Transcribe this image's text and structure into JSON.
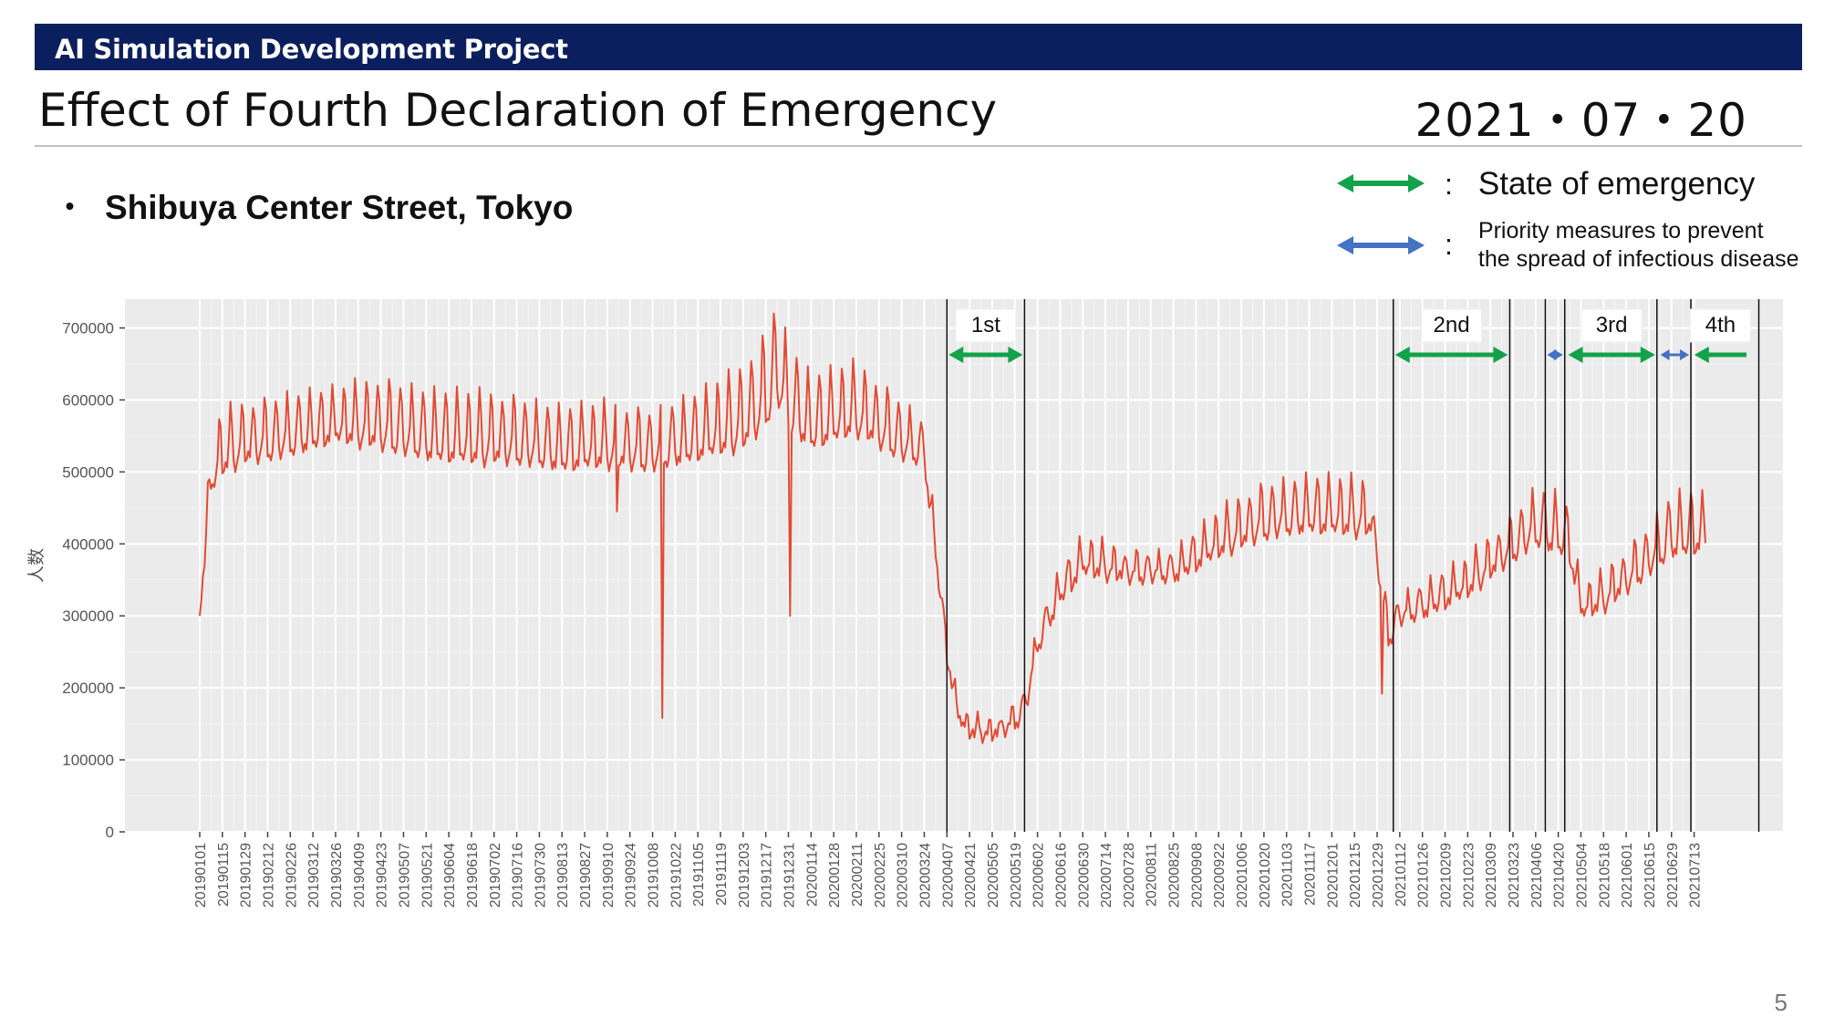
{
  "header": {
    "project": "AI Simulation Development Project"
  },
  "slide": {
    "title": "Effect of Fourth Declaration of Emergency",
    "date": "2021・07・20",
    "subtitle_bullet": "・",
    "subtitle": "Shibuya Center Street, Tokyo",
    "page_number": "5"
  },
  "legend": {
    "colon": ":",
    "state_of_emergency": "State of emergency",
    "priority_line1": "Priority measures to prevent",
    "priority_line2": "the spread of infectious disease",
    "state_color": "#12a24a",
    "priority_color": "#4472c4"
  },
  "colors": {
    "header_bg": "#0b1f5e",
    "plot_bg": "#ebebeb",
    "line": "#e34a33",
    "grid": "#ffffff"
  },
  "chart_data": {
    "type": "line",
    "title": "",
    "xlabel": "",
    "ylabel": "人数",
    "ylim": [
      0,
      740000
    ],
    "yticks": [
      0,
      100000,
      200000,
      300000,
      400000,
      500000,
      600000,
      700000
    ],
    "x_start": "20190101",
    "x_end": "20210720",
    "x_tick_labels": [
      "20190101",
      "20190115",
      "20190129",
      "20190212",
      "20190226",
      "20190312",
      "20190326",
      "20190409",
      "20190423",
      "20190507",
      "20190521",
      "20190604",
      "20190618",
      "20190702",
      "20190716",
      "20190730",
      "20190813",
      "20190827",
      "20190910",
      "20190924",
      "20191008",
      "20191022",
      "20191105",
      "20191119",
      "20191203",
      "20191217",
      "20191231",
      "20200114",
      "20200128",
      "20200211",
      "20200225",
      "20200310",
      "20200324",
      "20200407",
      "20200421",
      "20200505",
      "20200519",
      "20200602",
      "20200616",
      "20200630",
      "20200714",
      "20200728",
      "20200811",
      "20200825",
      "20200908",
      "20200922",
      "20201006",
      "20201020",
      "20201103",
      "20201117",
      "20201201",
      "20201215",
      "20201229",
      "20210112",
      "20210126",
      "20210209",
      "20210223",
      "20210309",
      "20210323",
      "20210406",
      "20210420",
      "20210504",
      "20210518",
      "20210601",
      "20210615",
      "20210629",
      "20210713"
    ],
    "series": [
      {
        "name": "",
        "weekly_anchors": {
          "dates": [
            "20190101",
            "20190108",
            "20190115",
            "20190129",
            "20190226",
            "20190326",
            "20190423",
            "20190521",
            "20190618",
            "20190716",
            "20190813",
            "20190910",
            "20191008",
            "20191105",
            "20191203",
            "20191217",
            "20191224",
            "20191231",
            "20200114",
            "20200211",
            "20200310",
            "20200324",
            "20200331",
            "20200407",
            "20200414",
            "20200421",
            "20200505",
            "20200519",
            "20200526",
            "20200602",
            "20200616",
            "20200630",
            "20200728",
            "20200825",
            "20200922",
            "20201020",
            "20201117",
            "20201215",
            "20201225",
            "20201229",
            "20210105",
            "20210112",
            "20210126",
            "20210223",
            "20210323",
            "20210406",
            "20210420",
            "20210427",
            "20210504",
            "20210518",
            "20210615",
            "20210629",
            "20210713",
            "20210720"
          ],
          "baseline": [
            300000,
            470000,
            500000,
            515000,
            525000,
            545000,
            535000,
            520000,
            515000,
            515000,
            505000,
            510000,
            505000,
            520000,
            535000,
            565000,
            600000,
            560000,
            535000,
            555000,
            520000,
            510000,
            380000,
            240000,
            155000,
            135000,
            130000,
            145000,
            170000,
            250000,
            320000,
            360000,
            350000,
            350000,
            385000,
            410000,
            420000,
            415000,
            415000,
            370000,
            260000,
            290000,
            300000,
            330000,
            380000,
            400000,
            390000,
            380000,
            300000,
            310000,
            360000,
            385000,
            390000,
            395000
          ],
          "weekly_peak_increase": [
            0,
            80000,
            85000,
            80000,
            85000,
            70000,
            95000,
            95000,
            95000,
            90000,
            85000,
            85000,
            80000,
            90000,
            110000,
            130000,
            140000,
            120000,
            100000,
            95000,
            80000,
            60000,
            40000,
            30000,
            25000,
            25000,
            25000,
            30000,
            35000,
            40000,
            45000,
            50000,
            40000,
            40000,
            60000,
            75000,
            75000,
            75000,
            70000,
            40000,
            40000,
            40000,
            45000,
            50000,
            60000,
            80000,
            80000,
            70000,
            40000,
            50000,
            65000,
            85000,
            85000,
            70000
          ]
        },
        "notable_dips": [
          {
            "date": "20190916",
            "value": 445000
          },
          {
            "date": "20191014",
            "value": 158000
          },
          {
            "date": "20200101",
            "value": 300000
          },
          {
            "date": "20210101",
            "value": 192000
          }
        ]
      }
    ],
    "periods": [
      {
        "label": "1st",
        "kind": "State of emergency",
        "start": "20200407",
        "end": "20200525"
      },
      {
        "label": "2nd",
        "kind": "State of emergency",
        "start": "20210108",
        "end": "20210321"
      },
      {
        "label": "",
        "kind": "Priority measures to prevent the spread of infectious disease",
        "start": "20210412",
        "end": "20210424"
      },
      {
        "label": "3rd",
        "kind": "State of emergency",
        "start": "20210425",
        "end": "20210620"
      },
      {
        "label": "",
        "kind": "Priority measures to prevent the spread of infectious disease",
        "start": "20210621",
        "end": "20210711"
      },
      {
        "label": "4th",
        "kind": "State of emergency",
        "start": "20210712",
        "end": "20210822"
      }
    ]
  }
}
